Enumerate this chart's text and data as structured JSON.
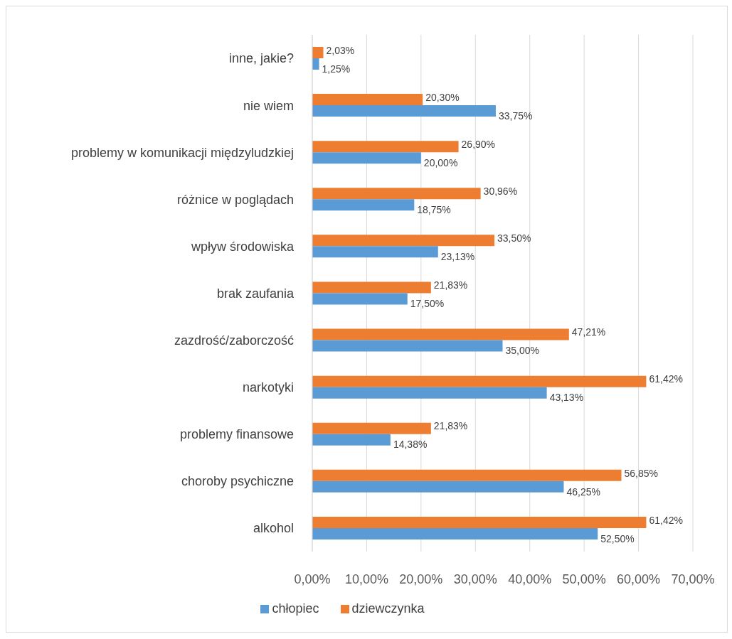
{
  "chart_data": {
    "type": "bar",
    "orientation": "horizontal",
    "categories": [
      "inne, jakie?",
      "nie wiem",
      "problemy w komunikacji międzyludzkiej",
      "różnice w poglądach",
      "wpływ środowiska",
      "brak zaufania",
      "zazdrość/zaborczość",
      "narkotyki",
      "problemy finansowe",
      "choroby psychiczne",
      "alkohol"
    ],
    "series": [
      {
        "name": "dziewczynka",
        "color": "#ed7d31",
        "values": [
          2.03,
          20.3,
          26.9,
          30.96,
          33.5,
          21.83,
          47.21,
          61.42,
          21.83,
          56.85,
          61.42
        ],
        "value_labels": [
          "2,03%",
          "20,30%",
          "26,90%",
          "30,96%",
          "33,50%",
          "21,83%",
          "47,21%",
          "61,42%",
          "21,83%",
          "56,85%",
          "61,42%"
        ]
      },
      {
        "name": "chłopiec",
        "color": "#5b9bd5",
        "values": [
          1.25,
          33.75,
          20.0,
          18.75,
          23.13,
          17.5,
          35.0,
          43.13,
          14.38,
          46.25,
          52.5
        ],
        "value_labels": [
          "1,25%",
          "33,75%",
          "20,00%",
          "18,75%",
          "23,13%",
          "17,50%",
          "35,00%",
          "43,13%",
          "14,38%",
          "46,25%",
          "52,50%"
        ]
      }
    ],
    "xlim": [
      0,
      70
    ],
    "xticks": [
      {
        "value": 0,
        "label": "0,00%"
      },
      {
        "value": 10,
        "label": "10,00%"
      },
      {
        "value": 20,
        "label": "20,00%"
      },
      {
        "value": 30,
        "label": "30,00%"
      },
      {
        "value": 40,
        "label": "40,00%"
      },
      {
        "value": 50,
        "label": "50,00%"
      },
      {
        "value": 60,
        "label": "60,00%"
      },
      {
        "value": 70,
        "label": "70,00%"
      }
    ],
    "grid": "x",
    "legend": "bottom"
  }
}
